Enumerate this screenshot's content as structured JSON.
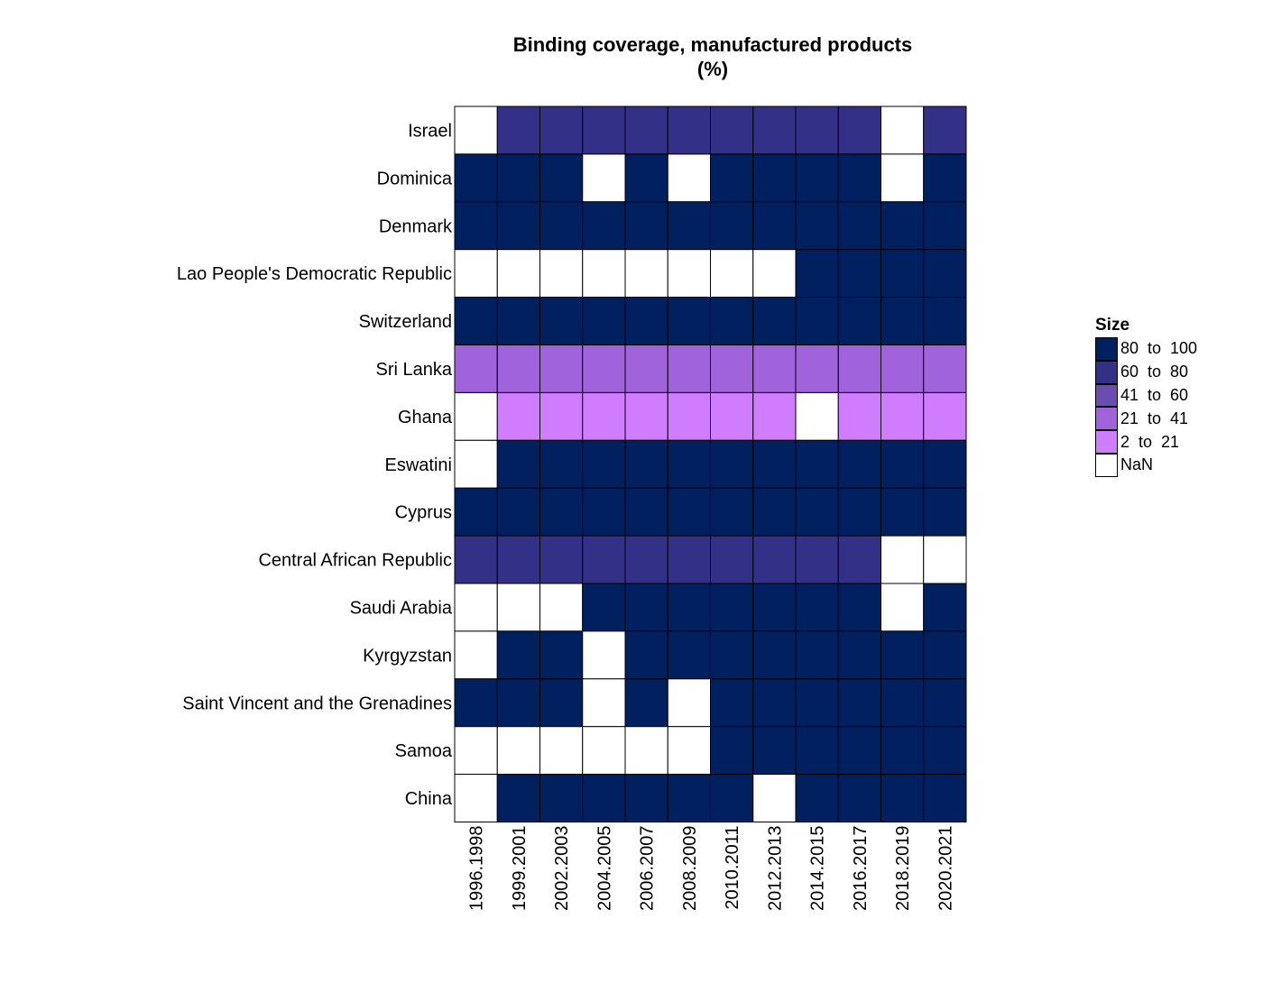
{
  "chart_data": {
    "type": "heatmap",
    "title": "Binding coverage, manufactured products",
    "subtitle": "(%)",
    "columns": [
      "1996.1998",
      "1999.2001",
      "2002.2003",
      "2004.2005",
      "2006.2007",
      "2008.2009",
      "2010.2011",
      "2012.2013",
      "2014.2015",
      "2016.2017",
      "2018.2019",
      "2020.2021"
    ],
    "rows": [
      "Israel",
      "Dominica",
      "Denmark",
      "Lao People's Democratic Republic",
      "Switzerland",
      "Sri Lanka",
      "Ghana",
      "Eswatini",
      "Cyprus",
      "Central African Republic",
      "Saudi Arabia",
      "Kyrgyzstan",
      "Saint Vincent and the Grenadines",
      "Samoa",
      "China"
    ],
    "bins": [
      "80  to  100",
      "60  to  80",
      "41  to  60",
      "21  to  41",
      "2  to  21",
      "NaN"
    ],
    "cells": [
      [
        "NaN",
        "60  to  80",
        "60  to  80",
        "60  to  80",
        "60  to  80",
        "60  to  80",
        "60  to  80",
        "60  to  80",
        "60  to  80",
        "60  to  80",
        "NaN",
        "60  to  80"
      ],
      [
        "80  to  100",
        "80  to  100",
        "80  to  100",
        "NaN",
        "80  to  100",
        "NaN",
        "80  to  100",
        "80  to  100",
        "80  to  100",
        "80  to  100",
        "NaN",
        "80  to  100"
      ],
      [
        "80  to  100",
        "80  to  100",
        "80  to  100",
        "80  to  100",
        "80  to  100",
        "80  to  100",
        "80  to  100",
        "80  to  100",
        "80  to  100",
        "80  to  100",
        "80  to  100",
        "80  to  100"
      ],
      [
        "NaN",
        "NaN",
        "NaN",
        "NaN",
        "NaN",
        "NaN",
        "NaN",
        "NaN",
        "80  to  100",
        "80  to  100",
        "80  to  100",
        "80  to  100"
      ],
      [
        "80  to  100",
        "80  to  100",
        "80  to  100",
        "80  to  100",
        "80  to  100",
        "80  to  100",
        "80  to  100",
        "80  to  100",
        "80  to  100",
        "80  to  100",
        "80  to  100",
        "80  to  100"
      ],
      [
        "21  to  41",
        "21  to  41",
        "21  to  41",
        "21  to  41",
        "21  to  41",
        "21  to  41",
        "21  to  41",
        "21  to  41",
        "21  to  41",
        "21  to  41",
        "21  to  41",
        "21  to  41"
      ],
      [
        "NaN",
        "2  to  21",
        "2  to  21",
        "2  to  21",
        "2  to  21",
        "2  to  21",
        "2  to  21",
        "2  to  21",
        "NaN",
        "2  to  21",
        "2  to  21",
        "2  to  21"
      ],
      [
        "NaN",
        "80  to  100",
        "80  to  100",
        "80  to  100",
        "80  to  100",
        "80  to  100",
        "80  to  100",
        "80  to  100",
        "80  to  100",
        "80  to  100",
        "80  to  100",
        "80  to  100"
      ],
      [
        "80  to  100",
        "80  to  100",
        "80  to  100",
        "80  to  100",
        "80  to  100",
        "80  to  100",
        "80  to  100",
        "80  to  100",
        "80  to  100",
        "80  to  100",
        "80  to  100",
        "80  to  100"
      ],
      [
        "60  to  80",
        "60  to  80",
        "60  to  80",
        "60  to  80",
        "60  to  80",
        "60  to  80",
        "60  to  80",
        "60  to  80",
        "60  to  80",
        "60  to  80",
        "NaN",
        "NaN"
      ],
      [
        "NaN",
        "NaN",
        "NaN",
        "80  to  100",
        "80  to  100",
        "80  to  100",
        "80  to  100",
        "80  to  100",
        "80  to  100",
        "80  to  100",
        "NaN",
        "80  to  100"
      ],
      [
        "NaN",
        "80  to  100",
        "80  to  100",
        "NaN",
        "80  to  100",
        "80  to  100",
        "80  to  100",
        "80  to  100",
        "80  to  100",
        "80  to  100",
        "80  to  100",
        "80  to  100"
      ],
      [
        "80  to  100",
        "80  to  100",
        "80  to  100",
        "NaN",
        "80  to  100",
        "NaN",
        "80  to  100",
        "80  to  100",
        "80  to  100",
        "80  to  100",
        "80  to  100",
        "80  to  100"
      ],
      [
        "NaN",
        "NaN",
        "NaN",
        "NaN",
        "NaN",
        "NaN",
        "80  to  100",
        "80  to  100",
        "80  to  100",
        "80  to  100",
        "80  to  100",
        "80  to  100"
      ],
      [
        "NaN",
        "80  to  100",
        "80  to  100",
        "80  to  100",
        "80  to  100",
        "80  to  100",
        "80  to  100",
        "NaN",
        "80  to  100",
        "80  to  100",
        "80  to  100",
        "80  to  100"
      ]
    ]
  },
  "legend": {
    "title": "Size",
    "items": [
      {
        "label": "80  to  100",
        "color": "#002060"
      },
      {
        "label": "60  to  80",
        "color": "#333087"
      },
      {
        "label": "41  to  60",
        "color": "#6a4db0"
      },
      {
        "label": "21  to  41",
        "color": "#a063dc"
      },
      {
        "label": "2  to  21",
        "color": "#d07cff"
      },
      {
        "label": "NaN",
        "color": "#ffffff"
      }
    ]
  }
}
